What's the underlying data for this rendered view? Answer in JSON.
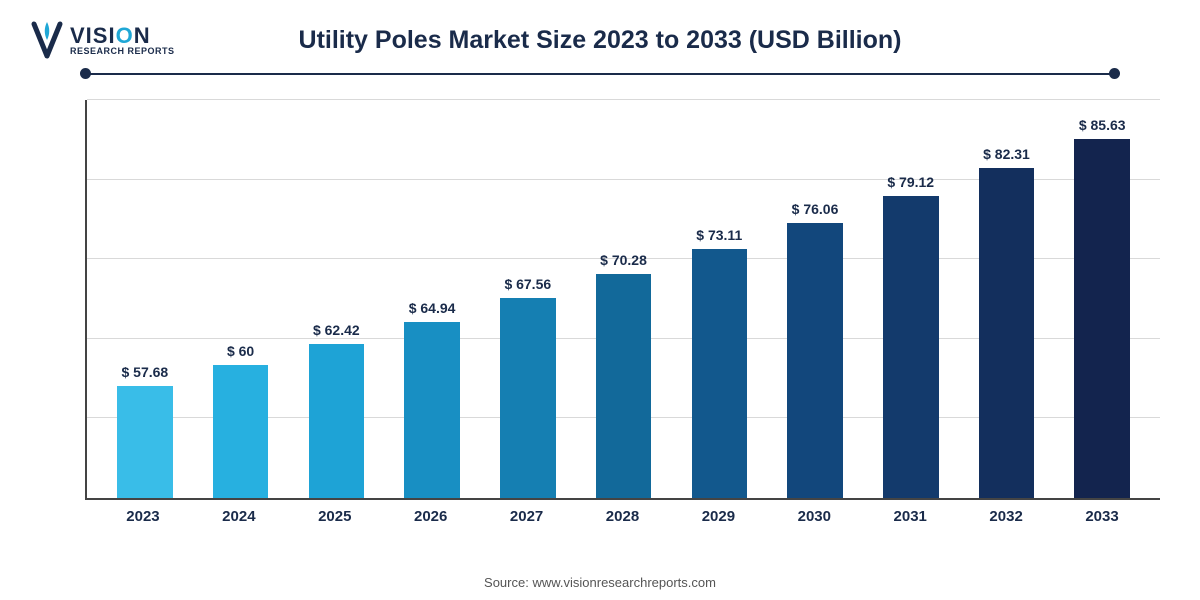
{
  "logo": {
    "main_pre": "VISI",
    "main_accent": "O",
    "main_post": "N",
    "sub": "RESEARCH REPORTS",
    "text_color": "#1a2b4a",
    "accent_color": "#1fa7d6"
  },
  "chart": {
    "type": "bar",
    "title": "Utility Poles Market Size 2023 to 2033 (USD Billion)",
    "title_fontsize": 25,
    "title_color": "#1a2b4a",
    "rule_color": "#1a2b4a",
    "axis_color": "#444444",
    "grid_color": "#d9d9d9",
    "background_color": "#ffffff",
    "ylim": [
      45,
      90
    ],
    "grid_lines": 5,
    "bar_width_ratio": 0.58,
    "value_prefix": "$ ",
    "value_label_fontsize": 14,
    "x_label_fontsize": 15,
    "categories": [
      "2023",
      "2024",
      "2025",
      "2026",
      "2027",
      "2028",
      "2029",
      "2030",
      "2031",
      "2032",
      "2033"
    ],
    "values": [
      57.68,
      60,
      62.42,
      64.94,
      67.56,
      70.28,
      73.11,
      76.06,
      79.12,
      82.31,
      85.63
    ],
    "value_labels": [
      "57.68",
      "60",
      "62.42",
      "64.94",
      "67.56",
      "70.28",
      "73.11",
      "76.06",
      "79.12",
      "82.31",
      "85.63"
    ],
    "bar_colors": [
      "#39bde8",
      "#27b0e0",
      "#1ea3d6",
      "#188fc3",
      "#157fb2",
      "#12699a",
      "#12588d",
      "#12477c",
      "#133a6c",
      "#132f5d",
      "#13244e"
    ]
  },
  "source": "Source: www.visionresearchreports.com"
}
